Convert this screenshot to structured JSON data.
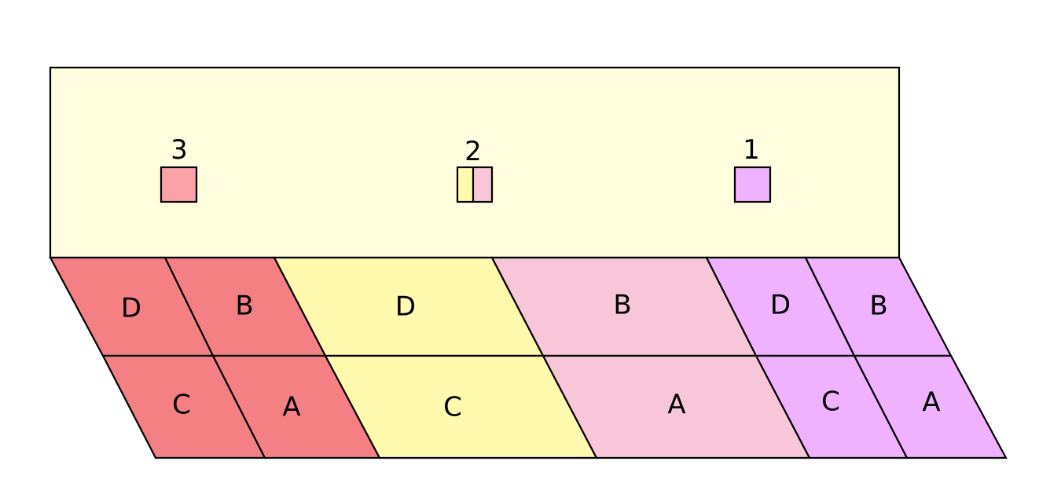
{
  "colors": {
    "background": "#ffffff",
    "panel": "#fefedf",
    "red": "#f48084",
    "yellow": "#fef9ac",
    "pink": "#f8c6d8",
    "violet": "#f0b2fe",
    "swatch_red": "#fca3a8"
  },
  "markers": [
    {
      "label": "3",
      "colors": [
        "#fca3a8"
      ]
    },
    {
      "label": "2",
      "colors": [
        "#fef9ac",
        "#f8c6d8"
      ]
    },
    {
      "label": "1",
      "colors": [
        "#f0b2fe"
      ]
    }
  ],
  "cells": [
    {
      "label": "D",
      "color": "#f48084"
    },
    {
      "label": "B",
      "color": "#f48084"
    },
    {
      "label": "D",
      "color": "#fef9ac"
    },
    {
      "label": "B",
      "color": "#f8c6d8"
    },
    {
      "label": "D",
      "color": "#f0b2fe"
    },
    {
      "label": "B",
      "color": "#f0b2fe"
    },
    {
      "label": "C",
      "color": "#f48084"
    },
    {
      "label": "A",
      "color": "#f48084"
    },
    {
      "label": "C",
      "color": "#fef9ac"
    },
    {
      "label": "A",
      "color": "#f8c6d8"
    },
    {
      "label": "C",
      "color": "#f0b2fe"
    },
    {
      "label": "A",
      "color": "#f0b2fe"
    }
  ]
}
